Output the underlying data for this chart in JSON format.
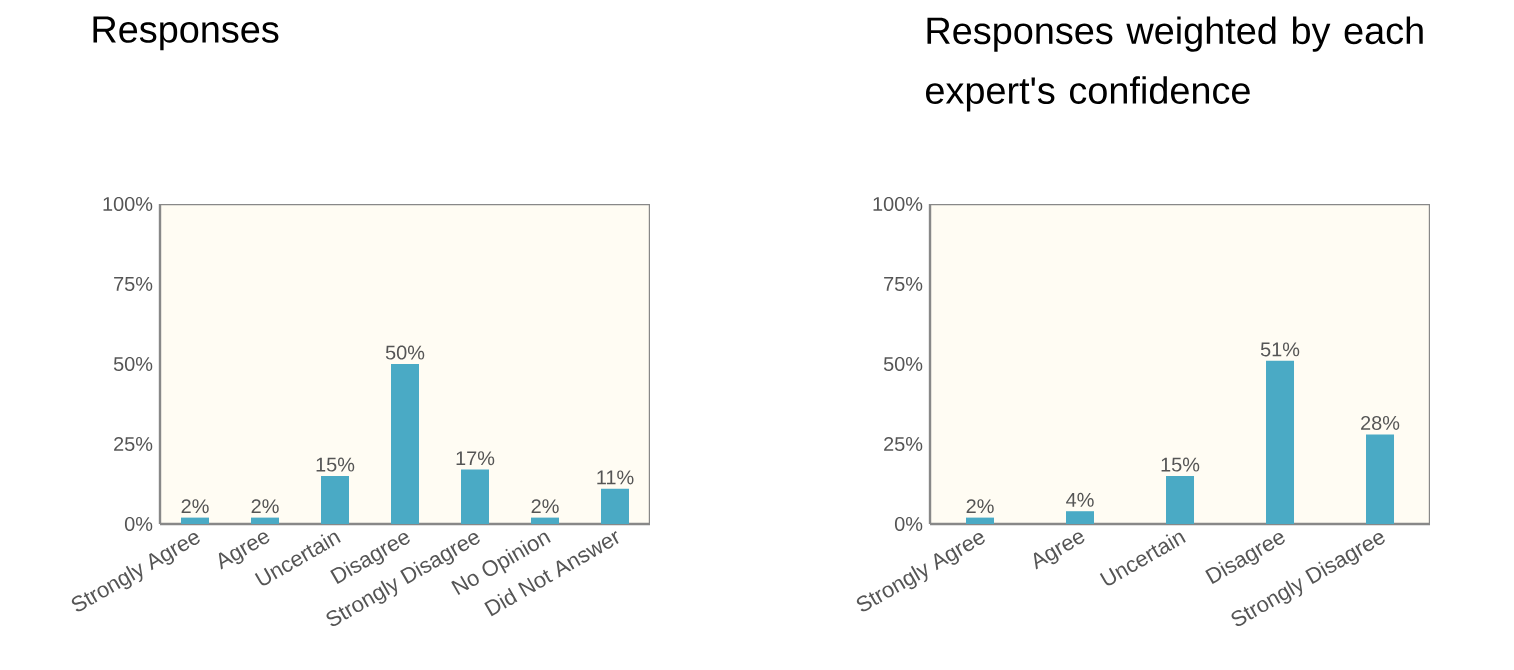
{
  "chart_data": [
    {
      "type": "bar",
      "title": "Responses",
      "categories": [
        "Strongly Agree",
        "Agree",
        "Uncertain",
        "Disagree",
        "Strongly Disagree",
        "No Opinion",
        "Did Not Answer"
      ],
      "values": [
        2,
        2,
        15,
        50,
        17,
        2,
        11
      ],
      "color": "#4aaac5",
      "value_labels": [
        "2%",
        "2%",
        "15%",
        "50%",
        "17%",
        "2%",
        "11%"
      ],
      "ylim": [
        0,
        100
      ],
      "yticks": [
        {
          "value": 0,
          "label": "0%"
        },
        {
          "value": 25,
          "label": "25%"
        },
        {
          "value": 50,
          "label": "50%"
        },
        {
          "value": 75,
          "label": "75%"
        },
        {
          "value": 100,
          "label": "100%"
        }
      ],
      "grid": false
    },
    {
      "type": "bar",
      "title": "Responses weighted by each expert's confidence",
      "categories": [
        "Strongly Agree",
        "Agree",
        "Uncertain",
        "Disagree",
        "Strongly Disagree"
      ],
      "values": [
        2,
        4,
        15,
        51,
        28
      ],
      "color": "#4aaac5",
      "value_labels": [
        "2%",
        "4%",
        "15%",
        "51%",
        "28%"
      ],
      "ylim": [
        0,
        100
      ],
      "yticks": [
        {
          "value": 0,
          "label": "0%"
        },
        {
          "value": 25,
          "label": "25%"
        },
        {
          "value": 50,
          "label": "50%"
        },
        {
          "value": 75,
          "label": "75%"
        },
        {
          "value": 100,
          "label": "100%"
        }
      ],
      "grid": false
    }
  ]
}
